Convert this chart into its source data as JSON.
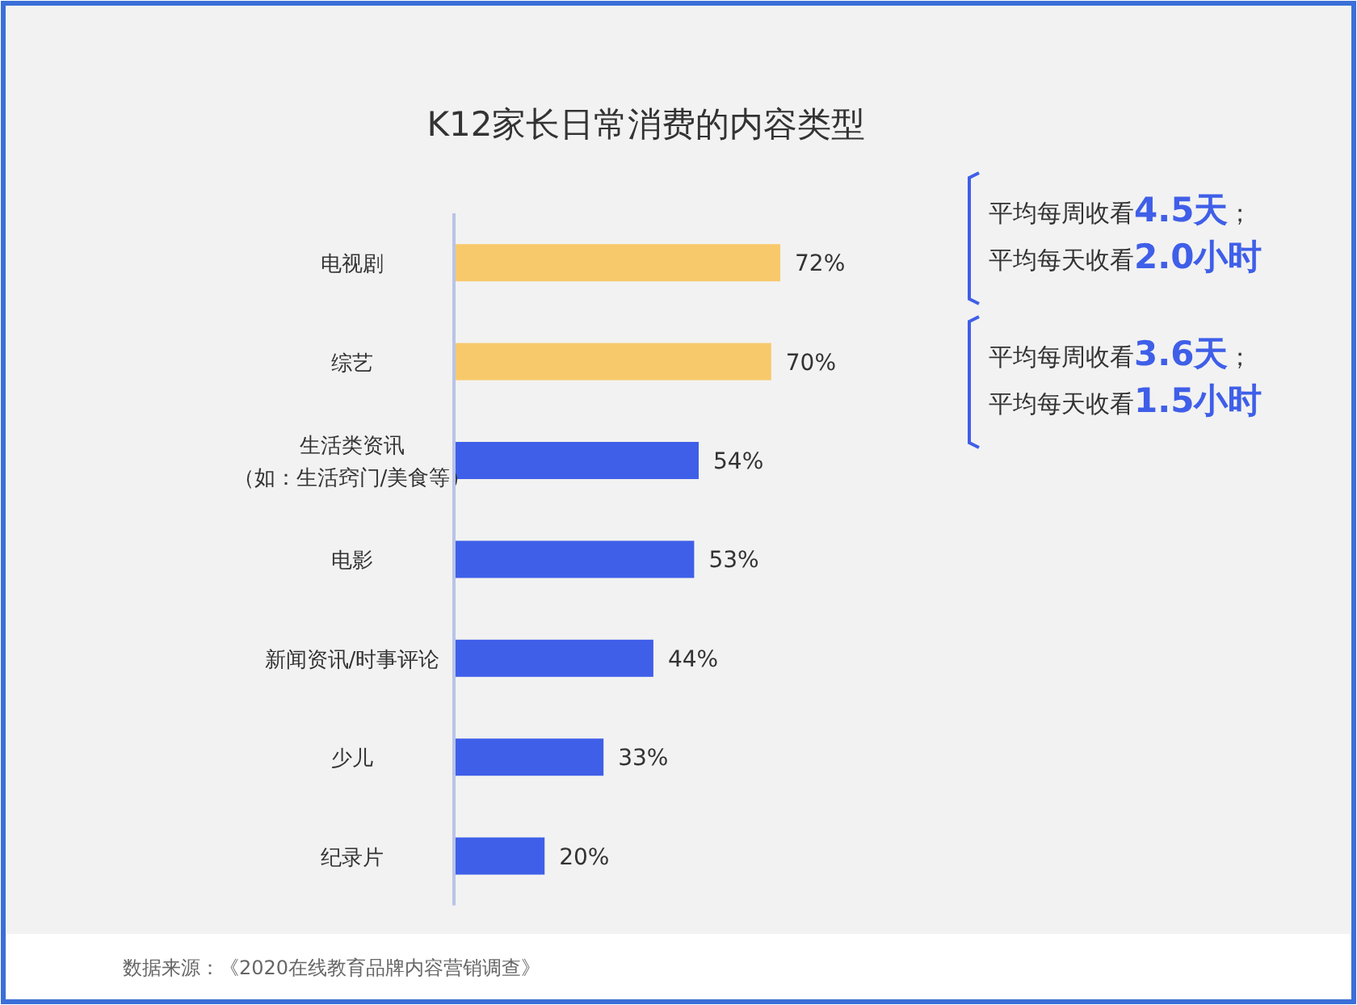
{
  "chart_data": {
    "type": "bar",
    "orientation": "horizontal",
    "title": "K12家长日常消费的内容类型",
    "categories": [
      "电视剧",
      "综艺",
      "生活类资讯（如：生活窍门/美食等）",
      "电影",
      "新闻资讯/时事评论",
      "少儿",
      "纪录片"
    ],
    "values": [
      72,
      70,
      54,
      53,
      44,
      33,
      20
    ],
    "value_labels": [
      "72%",
      "70%",
      "54%",
      "53%",
      "44%",
      "33%",
      "20%"
    ],
    "colors": [
      "#f8c96b",
      "#f8c96b",
      "#3f5fe8",
      "#3f5fe8",
      "#3f5fe8",
      "#3f5fe8",
      "#3f5fe8"
    ],
    "annotations": [
      "平均每周收看4.5天；",
      "平均每天收看2.0小时",
      "平均每周收看3.6天；",
      "平均每天收看1.5小时",
      "数据来源：《2020在线教育品牌内容营销调查》"
    ]
  }
}
